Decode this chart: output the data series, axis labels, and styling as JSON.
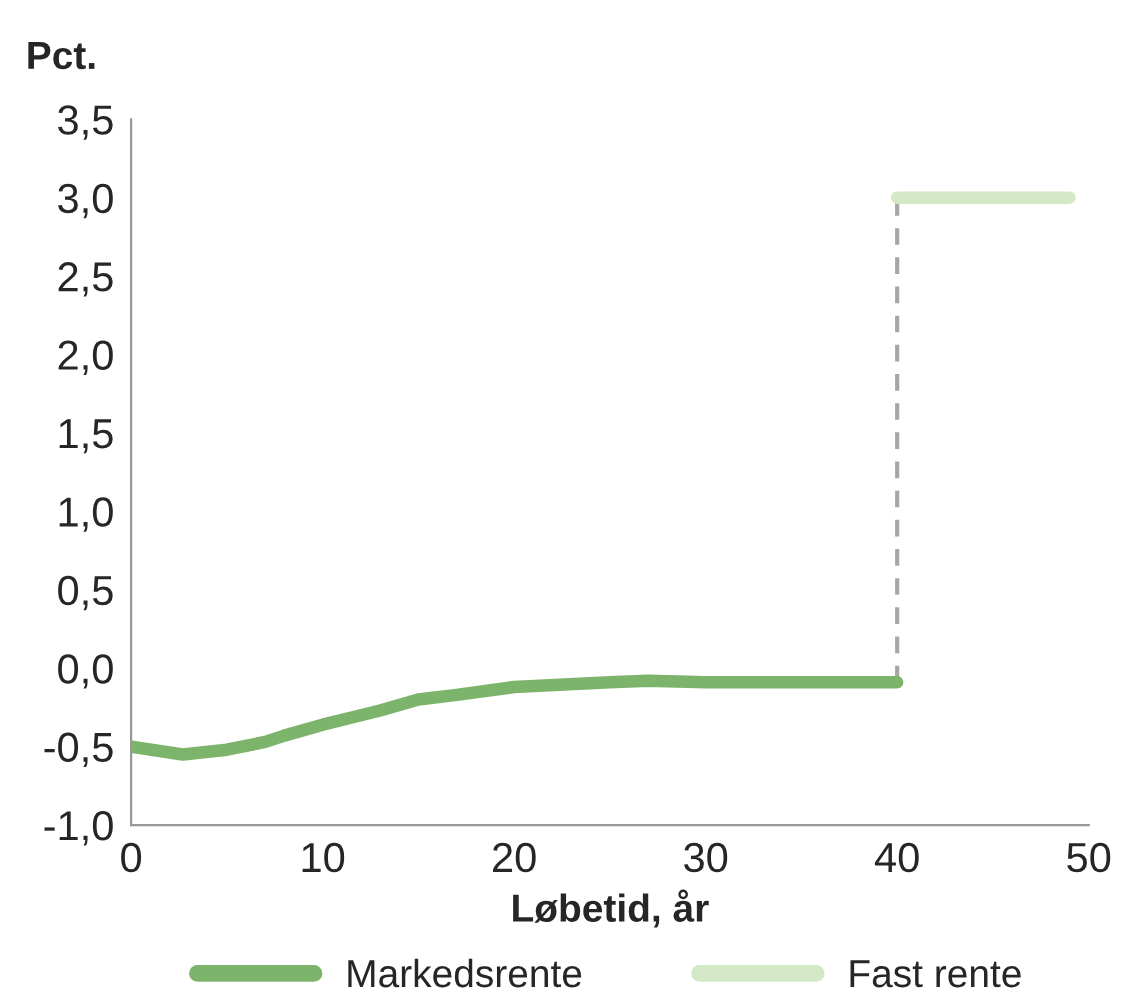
{
  "chart_data": {
    "type": "line",
    "ylabel": "Pct.",
    "xlabel": "Løbetid, år",
    "series": [
      {
        "name": "Markedsrente",
        "color": "#7db46c",
        "x": [
          0,
          2.7,
          5,
          7,
          8,
          10,
          12,
          13,
          15,
          17,
          20,
          25,
          27,
          30,
          35,
          40
        ],
        "values": [
          -0.5,
          -0.55,
          -0.52,
          -0.47,
          -0.43,
          -0.36,
          -0.3,
          -0.27,
          -0.2,
          -0.17,
          -0.12,
          -0.09,
          -0.08,
          -0.09,
          -0.09,
          -0.09
        ]
      },
      {
        "name": "Fast rente",
        "color": "#d3e8c5",
        "x": [
          40,
          49
        ],
        "values": [
          3.0,
          3.0
        ]
      },
      {
        "color": "#a6a6a6",
        "line_style": "dashed",
        "x": [
          40,
          40
        ],
        "values": [
          -0.09,
          3.0
        ]
      }
    ],
    "xlim": [
      0,
      50
    ],
    "xticks": [
      0,
      10,
      20,
      30,
      40,
      50
    ],
    "ylim": [
      -1.0,
      3.5
    ],
    "yticks": [
      {
        "value": -1.0,
        "label": "-1,0"
      },
      {
        "value": -0.5,
        "label": "-0,5"
      },
      {
        "value": 0.0,
        "label": "0,0"
      },
      {
        "value": 0.5,
        "label": "0,5"
      },
      {
        "value": 1.0,
        "label": "1,0"
      },
      {
        "value": 1.5,
        "label": "1,5"
      },
      {
        "value": 2.0,
        "label": "2,0"
      },
      {
        "value": 2.5,
        "label": "2,5"
      },
      {
        "value": 3.0,
        "label": "3,0"
      },
      {
        "value": 3.5,
        "label": "3,5"
      }
    ],
    "legend": "bottom",
    "grid": false
  }
}
